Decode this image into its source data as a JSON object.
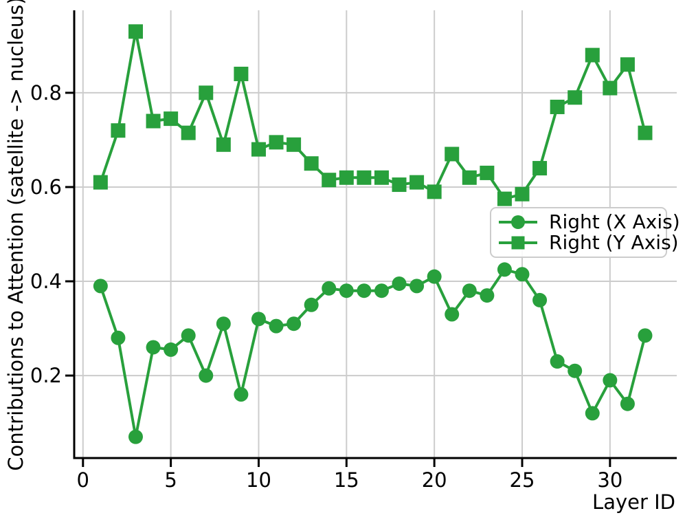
{
  "chart_data": {
    "type": "line",
    "title": "",
    "xlabel": "Layer ID",
    "ylabel": "Contributions to Attention (satellite -> nucleus)",
    "x": [
      1,
      2,
      3,
      4,
      5,
      6,
      7,
      8,
      9,
      10,
      11,
      12,
      13,
      14,
      15,
      16,
      17,
      18,
      19,
      20,
      21,
      22,
      23,
      24,
      25,
      26,
      27,
      28,
      29,
      30,
      31,
      32
    ],
    "series": [
      {
        "name": "Right (X Axis)",
        "marker": "circle",
        "color": "#28a03c",
        "values": [
          0.39,
          0.28,
          0.07,
          0.26,
          0.255,
          0.285,
          0.2,
          0.31,
          0.16,
          0.32,
          0.305,
          0.31,
          0.35,
          0.385,
          0.38,
          0.38,
          0.38,
          0.395,
          0.39,
          0.41,
          0.33,
          0.38,
          0.37,
          0.425,
          0.415,
          0.36,
          0.23,
          0.21,
          0.12,
          0.19,
          0.14,
          0.285
        ]
      },
      {
        "name": "Right (Y Axis)",
        "marker": "square",
        "color": "#28a03c",
        "values": [
          0.61,
          0.72,
          0.93,
          0.74,
          0.745,
          0.715,
          0.8,
          0.69,
          0.84,
          0.68,
          0.695,
          0.69,
          0.65,
          0.615,
          0.62,
          0.62,
          0.62,
          0.605,
          0.61,
          0.59,
          0.67,
          0.62,
          0.63,
          0.575,
          0.585,
          0.64,
          0.77,
          0.79,
          0.88,
          0.81,
          0.86,
          0.715
        ]
      }
    ],
    "xticks": {
      "values": [
        0,
        5,
        10,
        15,
        20,
        25,
        30
      ],
      "labels": [
        "0",
        "5",
        "10",
        "15",
        "20",
        "25",
        "30"
      ]
    },
    "yticks": {
      "values": [
        0.2,
        0.4,
        0.6,
        0.8
      ],
      "labels": [
        "0.2",
        "0.4",
        "0.6",
        "0.8"
      ]
    },
    "xlim": [
      -0.5,
      33.8
    ],
    "ylim": [
      0.025,
      0.975
    ],
    "grid": true,
    "legend": {
      "position": "center-right",
      "entries": [
        "Right (X Axis)",
        "Right (Y Axis)"
      ]
    },
    "colors": {
      "series_green": "#28a03c",
      "grid": "#cccccc",
      "axis": "#000000",
      "legend_border": "#cccccc",
      "background": "#ffffff"
    }
  }
}
